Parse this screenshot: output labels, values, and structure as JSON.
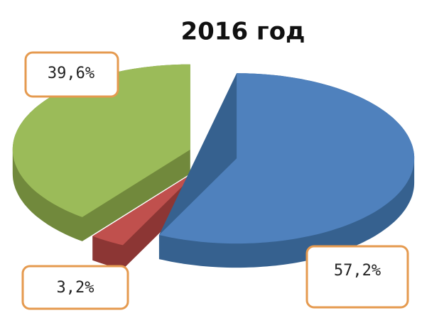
{
  "chart_data": {
    "type": "pie",
    "title": "2016 год",
    "values": [
      57.2,
      3.2,
      39.6
    ],
    "value_labels": [
      "57,2%",
      "3,2%",
      "39,6%"
    ],
    "colors": [
      "#4f81bd",
      "#c0504d",
      "#9bbb59"
    ],
    "side_colors": [
      "#36618f",
      "#8c3634",
      "#71893c"
    ]
  }
}
